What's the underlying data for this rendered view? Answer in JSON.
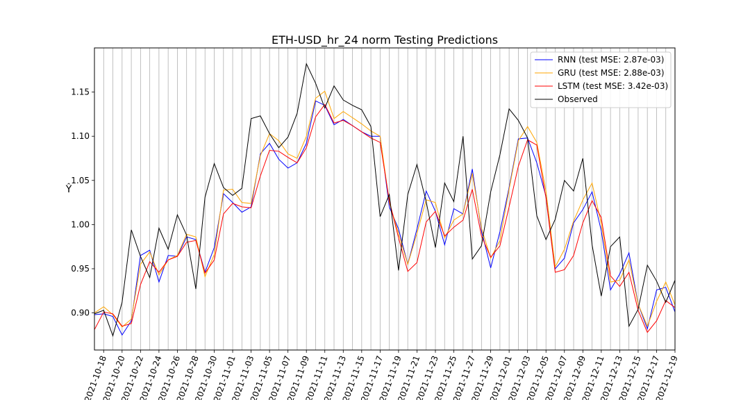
{
  "chart_data": {
    "type": "line",
    "title": "ETH-USD_hr_24 norm Testing Predictions",
    "xlabel": "",
    "ylabel": "Ŷ",
    "ylim": [
      0.858,
      1.2
    ],
    "yticks": [
      0.9,
      0.95,
      1.0,
      1.05,
      1.1,
      1.15
    ],
    "ytick_labels": [
      "0.90",
      "0.95",
      "1.00",
      "1.05",
      "1.10",
      "1.15"
    ],
    "xticks": [
      "2021-10-18",
      "2021-10-20",
      "2021-10-22",
      "2021-10-24",
      "2021-10-26",
      "2021-10-28",
      "2021-10-30",
      "2021-11-01",
      "2021-11-03",
      "2021-11-05",
      "2021-11-07",
      "2021-11-09",
      "2021-11-11",
      "2021-11-13",
      "2021-11-15",
      "2021-11-17",
      "2021-11-19",
      "2021-11-21",
      "2021-11-23",
      "2021-11-25",
      "2021-11-27",
      "2021-11-29",
      "2021-12-01",
      "2021-12-03",
      "2021-12-05",
      "2021-12-07",
      "2021-12-09",
      "2021-12-11",
      "2021-12-13",
      "2021-12-15",
      "2021-12-17",
      "2021-12-19"
    ],
    "x_start": "2021-10-17",
    "x_end": "2021-12-19",
    "grid": "vertical",
    "legend": "top-right",
    "series": [
      {
        "name": "RNN (test MSE: 2.87e-03)",
        "color": "#0000ff",
        "values": [
          0.898,
          0.899,
          0.896,
          0.875,
          0.891,
          0.965,
          0.971,
          0.935,
          0.965,
          0.964,
          0.986,
          0.983,
          0.946,
          0.974,
          1.035,
          1.025,
          1.014,
          1.02,
          1.08,
          1.092,
          1.074,
          1.064,
          1.07,
          1.092,
          1.14,
          1.135,
          1.113,
          1.119,
          1.112,
          1.105,
          1.1,
          1.1,
          1.02,
          0.995,
          0.955,
          0.995,
          1.038,
          1.015,
          0.977,
          1.018,
          1.012,
          1.063,
          0.993,
          0.951,
          0.992,
          1.042,
          1.097,
          1.098,
          1.07,
          1.032,
          0.95,
          0.962,
          1.002,
          1.017,
          1.037,
          0.993,
          0.926,
          0.944,
          0.968,
          0.91,
          0.882,
          0.926,
          0.929,
          0.901
        ]
      },
      {
        "name": "GRU (test MSE: 2.88e-03)",
        "color": "#ffa500",
        "values": [
          0.9,
          0.907,
          0.898,
          0.884,
          0.893,
          0.955,
          0.969,
          0.943,
          0.96,
          0.965,
          0.989,
          0.986,
          0.941,
          0.966,
          1.039,
          1.04,
          1.025,
          1.024,
          1.078,
          1.103,
          1.095,
          1.08,
          1.075,
          1.1,
          1.143,
          1.151,
          1.12,
          1.128,
          1.121,
          1.114,
          1.106,
          1.1,
          1.025,
          0.99,
          0.955,
          0.99,
          1.028,
          1.025,
          0.985,
          1.005,
          1.012,
          1.058,
          0.996,
          0.962,
          0.982,
          1.04,
          1.095,
          1.111,
          1.093,
          1.038,
          0.952,
          0.972,
          1.004,
          1.028,
          1.047,
          1.001,
          0.935,
          0.937,
          0.96,
          0.91,
          0.885,
          0.913,
          0.935,
          0.909
        ]
      },
      {
        "name": "LSTM (test MSE: 3.42e-03)",
        "color": "#ff0000",
        "values": [
          0.881,
          0.901,
          0.899,
          0.885,
          0.888,
          0.932,
          0.958,
          0.946,
          0.96,
          0.964,
          0.98,
          0.982,
          0.945,
          0.96,
          1.012,
          1.024,
          1.02,
          1.019,
          1.055,
          1.084,
          1.083,
          1.076,
          1.07,
          1.087,
          1.122,
          1.136,
          1.115,
          1.118,
          1.112,
          1.105,
          1.098,
          1.093,
          1.027,
          0.985,
          0.947,
          0.957,
          1.003,
          1.015,
          0.987,
          0.997,
          1.005,
          1.04,
          0.987,
          0.963,
          0.976,
          1.02,
          1.066,
          1.096,
          1.09,
          1.03,
          0.946,
          0.949,
          0.965,
          1.002,
          1.027,
          1.008,
          0.942,
          0.93,
          0.946,
          0.903,
          0.878,
          0.891,
          0.914,
          0.906
        ]
      },
      {
        "name": "Observed",
        "color": "#000000",
        "values": [
          0.899,
          0.903,
          0.874,
          0.912,
          0.994,
          0.964,
          0.94,
          0.996,
          0.972,
          1.011,
          0.988,
          0.927,
          1.031,
          1.069,
          1.042,
          1.033,
          1.041,
          1.12,
          1.123,
          1.103,
          1.087,
          1.099,
          1.126,
          1.182,
          1.16,
          1.132,
          1.157,
          1.141,
          1.135,
          1.13,
          1.111,
          1.009,
          1.034,
          0.948,
          1.034,
          1.068,
          1.026,
          0.974,
          1.047,
          1.026,
          1.1,
          0.961,
          0.976,
          1.037,
          1.079,
          1.131,
          1.118,
          1.098,
          1.01,
          0.983,
          1.006,
          1.05,
          1.038,
          1.075,
          0.977,
          0.919,
          0.975,
          0.986,
          0.885,
          0.904,
          0.954,
          0.936,
          0.912,
          0.937
        ]
      }
    ]
  }
}
